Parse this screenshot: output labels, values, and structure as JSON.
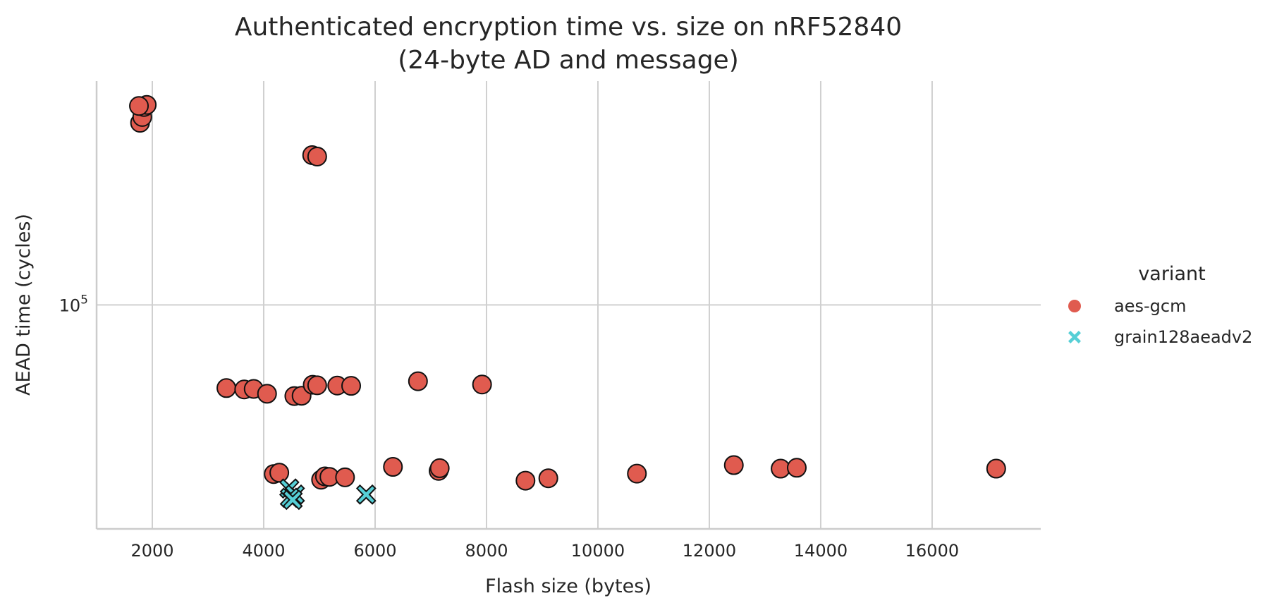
{
  "chart_data": {
    "type": "scatter",
    "title": [
      "Authenticated encryption time vs. size on nRF52840",
      "(24-byte AD and message)"
    ],
    "xlabel": "Flash size (bytes)",
    "ylabel": "AEAD time (cycles)",
    "xlim": [
      1000,
      17950
    ],
    "ylim": [
      27000,
      370000
    ],
    "yscale": "log",
    "grid": true,
    "x_ticks": [
      {
        "value": 2000,
        "label": "2000"
      },
      {
        "value": 4000,
        "label": "4000"
      },
      {
        "value": 6000,
        "label": "6000"
      },
      {
        "value": 8000,
        "label": "8000"
      },
      {
        "value": 10000,
        "label": "10000"
      },
      {
        "value": 12000,
        "label": "12000"
      },
      {
        "value": 14000,
        "label": "14000"
      },
      {
        "value": 16000,
        "label": "16000"
      }
    ],
    "y_ticks": [
      {
        "value": 100000,
        "label": "10",
        "sup": "5"
      }
    ],
    "legend": {
      "title": "variant",
      "placement": "right"
    },
    "series": [
      {
        "name": "aes-gcm",
        "color": "#e05b4f",
        "marker": "circle",
        "points": [
          [
            1780,
            290000
          ],
          [
            1820,
            300000
          ],
          [
            1850,
            318000
          ],
          [
            1900,
            322000
          ],
          [
            1760,
            320000
          ],
          [
            4870,
            240000
          ],
          [
            4960,
            238000
          ],
          [
            3330,
            61500
          ],
          [
            3650,
            61000
          ],
          [
            3820,
            61200
          ],
          [
            4060,
            59500
          ],
          [
            4550,
            58700
          ],
          [
            4680,
            58800
          ],
          [
            4880,
            62700
          ],
          [
            4960,
            62500
          ],
          [
            5320,
            62400
          ],
          [
            5570,
            62300
          ],
          [
            6770,
            64000
          ],
          [
            7920,
            62800
          ],
          [
            4180,
            37200
          ],
          [
            4280,
            37500
          ],
          [
            5030,
            36000
          ],
          [
            5100,
            36700
          ],
          [
            5180,
            36600
          ],
          [
            5460,
            36500
          ],
          [
            6320,
            38800
          ],
          [
            7140,
            37900
          ],
          [
            7160,
            38500
          ],
          [
            8700,
            35800
          ],
          [
            9110,
            36300
          ],
          [
            10700,
            37300
          ],
          [
            12440,
            39200
          ],
          [
            13280,
            38400
          ],
          [
            13570,
            38600
          ],
          [
            17150,
            38400
          ]
        ]
      },
      {
        "name": "grain128aeadv2",
        "color": "#56cfd6",
        "marker": "x",
        "points": [
          [
            4460,
            34200
          ],
          [
            4560,
            33000
          ],
          [
            4470,
            32400
          ],
          [
            4520,
            32000
          ],
          [
            5840,
            33000
          ]
        ]
      }
    ]
  }
}
